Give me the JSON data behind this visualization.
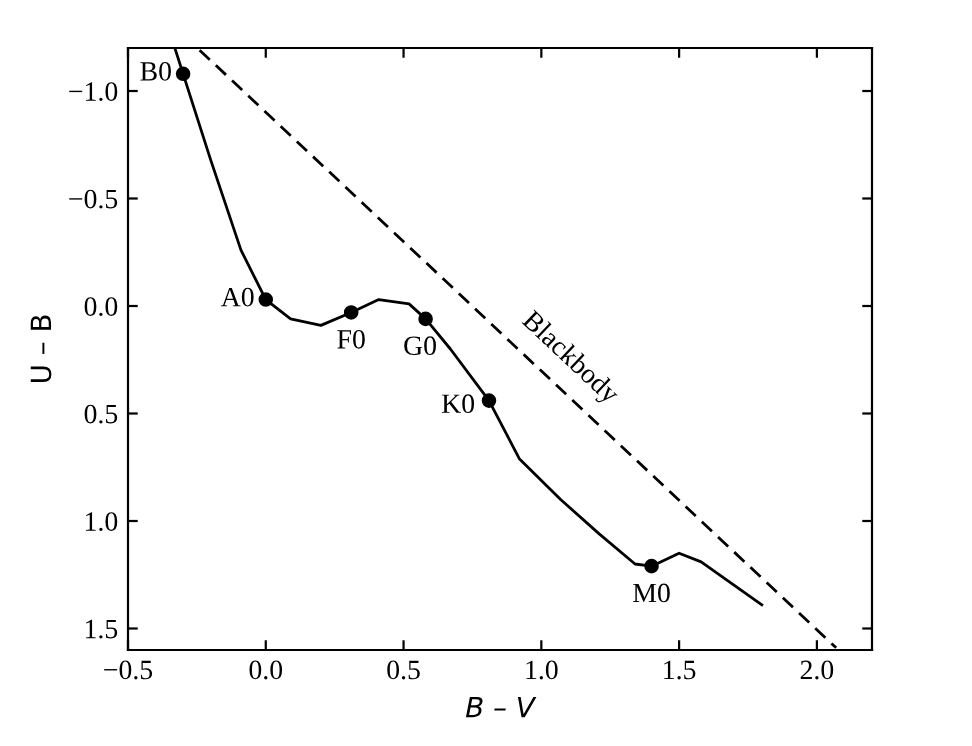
{
  "chart_data": {
    "type": "line",
    "xlabel": "B – V",
    "ylabel": "U – B",
    "xlim": [
      -0.5,
      2.2
    ],
    "ylim": [
      1.6,
      -1.2
    ],
    "xticks": [
      {
        "value": -0.5,
        "label": "−0.5"
      },
      {
        "value": 0,
        "label": "0.0"
      },
      {
        "value": 0.5,
        "label": "0.5"
      },
      {
        "value": 1,
        "label": "1.0"
      },
      {
        "value": 1.5,
        "label": "1.5"
      },
      {
        "value": 2,
        "label": "2.0"
      }
    ],
    "yticks": [
      {
        "value": -1,
        "label": "−1.0"
      },
      {
        "value": -0.5,
        "label": "−0.5"
      },
      {
        "value": 0,
        "label": "0.0"
      },
      {
        "value": 0.5,
        "label": "0.5"
      },
      {
        "value": 1,
        "label": "1.0"
      },
      {
        "value": 1.5,
        "label": "1.5"
      }
    ],
    "grid": false,
    "legend": false,
    "series": [
      {
        "color": "#000000",
        "line_style": "solid",
        "marker": "none",
        "x": [
          -0.33,
          -0.3,
          -0.2,
          -0.09,
          0.0,
          0.09,
          0.2,
          0.31,
          0.41,
          0.52,
          0.58,
          0.67,
          0.81,
          0.92,
          1.07,
          1.21,
          1.34,
          1.4,
          1.5,
          1.58,
          1.8
        ],
        "values": [
          -1.2,
          -1.08,
          -0.68,
          -0.26,
          -0.03,
          0.06,
          0.09,
          0.03,
          -0.03,
          -0.01,
          0.06,
          0.2,
          0.44,
          0.71,
          0.9,
          1.06,
          1.2,
          1.21,
          1.15,
          1.19,
          1.39
        ]
      },
      {
        "name": "Blackbody",
        "color": "#000000",
        "line_style": "dashed",
        "marker": "none",
        "x": [
          -0.24,
          2.07
        ],
        "values": [
          -1.19,
          1.59
        ]
      },
      {
        "type": "scatter",
        "color": "#000000",
        "marker": "circle",
        "x": [
          -0.3,
          0.0,
          0.31,
          0.58,
          0.81,
          1.4
        ],
        "values": [
          -1.08,
          -0.03,
          0.03,
          0.06,
          0.44,
          1.21
        ]
      }
    ],
    "annotations": [
      {
        "text": "B0",
        "x": -0.3,
        "y": -1.08
      },
      {
        "text": "A0",
        "x": 0.0,
        "y": -0.03
      },
      {
        "text": "F0",
        "x": 0.31,
        "y": 0.03
      },
      {
        "text": "G0",
        "x": 0.58,
        "y": 0.06
      },
      {
        "text": "K0",
        "x": 0.81,
        "y": 0.44
      },
      {
        "text": "M0",
        "x": 1.4,
        "y": 1.21
      }
    ]
  }
}
